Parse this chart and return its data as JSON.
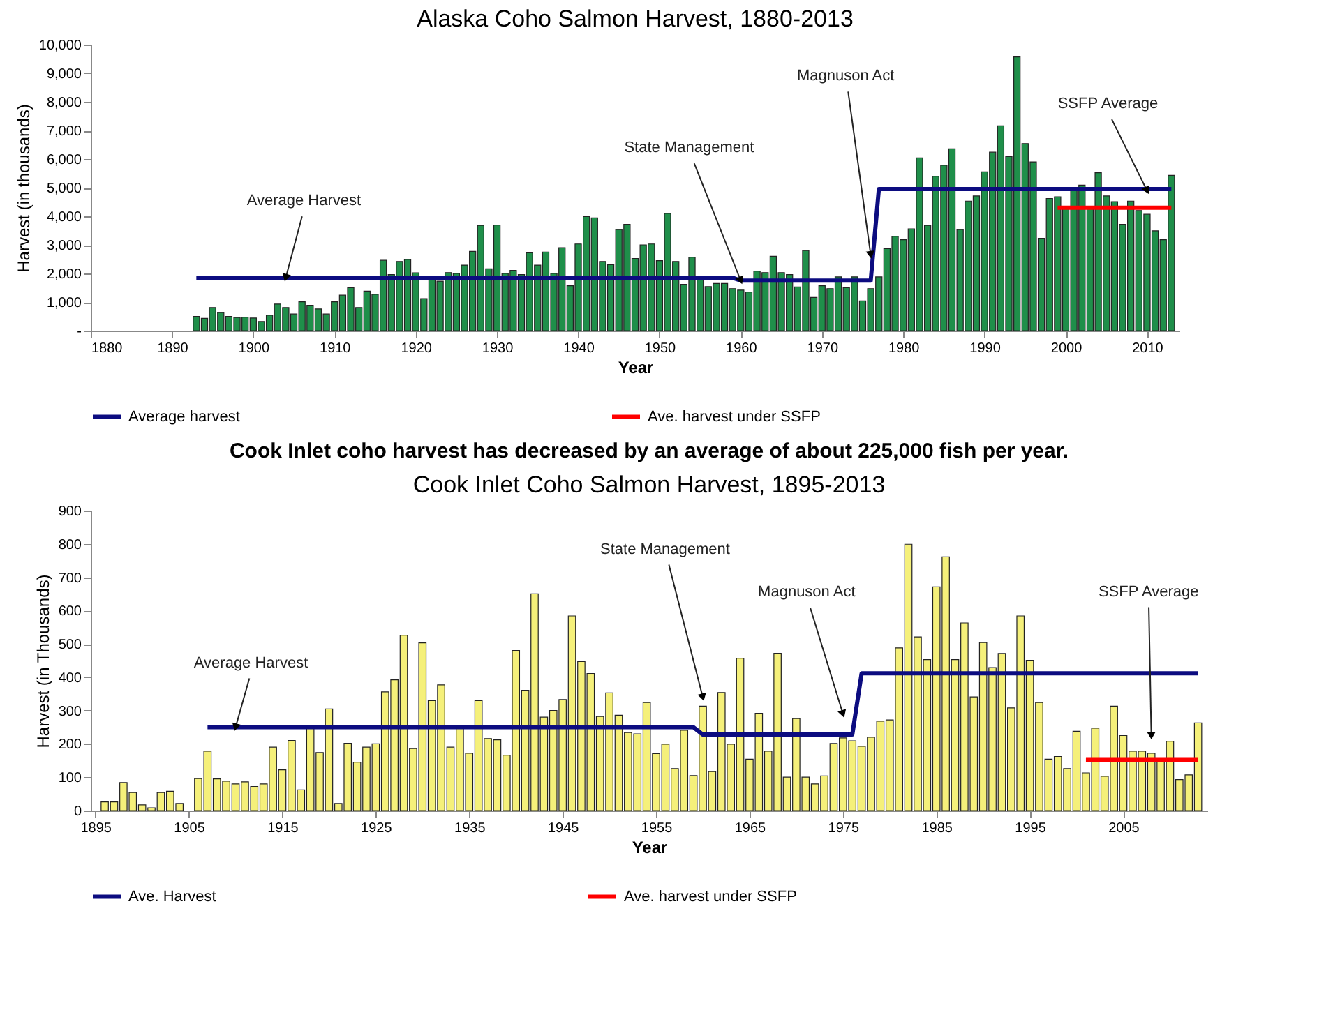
{
  "chart_data": [
    {
      "type": "bar",
      "title": "Alaska Coho Salmon Harvest, 1880-2013",
      "xlabel": "Year",
      "ylabel": "Harvest (in thousands)",
      "xlim": [
        1880,
        2014
      ],
      "xticks": [
        1880,
        1890,
        1900,
        1910,
        1920,
        1930,
        1940,
        1950,
        1960,
        1970,
        1980,
        1990,
        2000,
        2010
      ],
      "ylim": [
        0,
        10000
      ],
      "yticks": [
        {
          "value": 0,
          "label": "-"
        },
        {
          "value": 1000,
          "label": "1,000"
        },
        {
          "value": 2000,
          "label": "2,000"
        },
        {
          "value": 3000,
          "label": "3,000"
        },
        {
          "value": 4000,
          "label": "4,000"
        },
        {
          "value": 5000,
          "label": "5,000"
        },
        {
          "value": 6000,
          "label": "6,000"
        },
        {
          "value": 7000,
          "label": "7,000"
        },
        {
          "value": 8000,
          "label": "8,000"
        },
        {
          "value": 9000,
          "label": "9,000"
        },
        {
          "value": 10000,
          "label": "10,000"
        }
      ],
      "legend": "bottom",
      "series": [
        {
          "type": "bar",
          "color": "#1f8f4a",
          "x": [
            1893,
            1894,
            1895,
            1896,
            1897,
            1898,
            1899,
            1900,
            1901,
            1902,
            1903,
            1904,
            1905,
            1906,
            1907,
            1908,
            1909,
            1910,
            1911,
            1912,
            1913,
            1914,
            1915,
            1916,
            1917,
            1918,
            1919,
            1920,
            1921,
            1922,
            1923,
            1924,
            1925,
            1926,
            1927,
            1928,
            1929,
            1930,
            1931,
            1932,
            1933,
            1934,
            1935,
            1936,
            1937,
            1938,
            1939,
            1940,
            1941,
            1942,
            1943,
            1944,
            1945,
            1946,
            1947,
            1948,
            1949,
            1950,
            1951,
            1952,
            1953,
            1954,
            1955,
            1956,
            1957,
            1958,
            1959,
            1960,
            1961,
            1962,
            1963,
            1964,
            1965,
            1966,
            1967,
            1968,
            1969,
            1970,
            1971,
            1972,
            1973,
            1974,
            1975,
            1976,
            1977,
            1978,
            1979,
            1980,
            1981,
            1982,
            1983,
            1984,
            1985,
            1986,
            1987,
            1988,
            1989,
            1990,
            1991,
            1992,
            1993,
            1994,
            1995,
            1996,
            1997,
            1998,
            1999,
            2000,
            2001,
            2002,
            2003,
            2004,
            2005,
            2006,
            2007,
            2008,
            2009,
            2010,
            2011,
            2012,
            2013
          ],
          "values": [
            500,
            430,
            810,
            630,
            500,
            460,
            470,
            440,
            320,
            540,
            930,
            810,
            580,
            1010,
            890,
            760,
            580,
            1010,
            1240,
            1500,
            810,
            1380,
            1270,
            2460,
            1960,
            2420,
            2490,
            2020,
            1120,
            1800,
            1730,
            2030,
            2000,
            2290,
            2770,
            3680,
            2160,
            3690,
            2000,
            2110,
            1960,
            2720,
            2290,
            2750,
            2000,
            2900,
            1570,
            3030,
            3990,
            3940,
            2420,
            2310,
            3530,
            3720,
            2520,
            3000,
            3030,
            2450,
            4100,
            2420,
            1620,
            2570,
            1800,
            1540,
            1650,
            1650,
            1470,
            1420,
            1350,
            2080,
            2030,
            2600,
            2030,
            1960,
            1530,
            2800,
            1160,
            1570,
            1470,
            1880,
            1500,
            1880,
            1040,
            1470,
            1880,
            2870,
            3300,
            3180,
            3560,
            6040,
            3680,
            5400,
            5780,
            6360,
            3530,
            4530,
            4710,
            5550,
            6240,
            7160,
            6090,
            9570,
            6540,
            5900,
            3230,
            4620,
            4680,
            4280,
            4970,
            5090,
            4330,
            5520,
            4710,
            4510,
            3720,
            4530,
            4200,
            4070,
            3490,
            3180,
            5430
          ]
        },
        {
          "type": "line",
          "name": "Average harvest",
          "color": "#0c0c80",
          "x": [
            1893,
            1959,
            1960,
            1976,
            1977,
            2013
          ],
          "values": [
            1850,
            1850,
            1750,
            1750,
            4950,
            4950
          ]
        },
        {
          "type": "line",
          "name": "Ave. harvest under SSFP",
          "color": "#ff0000",
          "x": [
            1999,
            2013
          ],
          "values": [
            4300,
            4300
          ]
        }
      ],
      "annotations": [
        {
          "text": "Average Harvest",
          "x": 1904,
          "y": 1850
        },
        {
          "text": "State Management",
          "x": 1960,
          "y": 1750
        },
        {
          "text": "Magnuson Act",
          "x": 1976,
          "y": 2650
        },
        {
          "text": "SSFP Average",
          "x": 2010,
          "y": 4900
        }
      ]
    },
    {
      "type": "bar",
      "title": "Cook Inlet Coho Salmon Harvest, 1895-2013",
      "subtitle": "Cook Inlet coho harvest has decreased by an average of about 225,000 fish per year.",
      "xlabel": "Year",
      "ylabel": "Harvest (in Thousands)",
      "xlim": [
        1894.5,
        2014
      ],
      "xticks": [
        1895,
        1905,
        1915,
        1925,
        1935,
        1945,
        1955,
        1965,
        1975,
        1985,
        1995,
        2005
      ],
      "ylim": [
        0,
        900
      ],
      "yticks": [
        0,
        100,
        200,
        300,
        400,
        500,
        600,
        700,
        800,
        900
      ],
      "legend": "bottom",
      "series": [
        {
          "type": "bar",
          "color": "#f5f07a",
          "x": [
            1896,
            1897,
            1898,
            1899,
            1900,
            1901,
            1902,
            1903,
            1904,
            1905,
            1906,
            1907,
            1908,
            1909,
            1910,
            1911,
            1912,
            1913,
            1914,
            1915,
            1916,
            1917,
            1918,
            1919,
            1920,
            1921,
            1922,
            1923,
            1924,
            1925,
            1926,
            1927,
            1928,
            1929,
            1930,
            1931,
            1932,
            1933,
            1934,
            1935,
            1936,
            1937,
            1938,
            1939,
            1940,
            1941,
            1942,
            1943,
            1944,
            1945,
            1946,
            1947,
            1948,
            1949,
            1950,
            1951,
            1952,
            1953,
            1954,
            1955,
            1956,
            1957,
            1958,
            1959,
            1960,
            1961,
            1962,
            1963,
            1964,
            1965,
            1966,
            1967,
            1968,
            1969,
            1970,
            1971,
            1972,
            1973,
            1974,
            1975,
            1976,
            1977,
            1978,
            1979,
            1980,
            1981,
            1982,
            1983,
            1984,
            1985,
            1986,
            1987,
            1988,
            1989,
            1990,
            1991,
            1992,
            1993,
            1994,
            1995,
            1996,
            1997,
            1998,
            1999,
            2000,
            2001,
            2002,
            2003,
            2004,
            2005,
            2006,
            2007,
            2008,
            2009,
            2010,
            2011,
            2012,
            2013
          ],
          "values": [
            26,
            26,
            84,
            54,
            17,
            8,
            54,
            58,
            21,
            null,
            96,
            178,
            95,
            88,
            80,
            86,
            72,
            80,
            190,
            122,
            210,
            62,
            250,
            174,
            305,
            21,
            202,
            145,
            190,
            200,
            356,
            392,
            526,
            186,
            503,
            330,
            377,
            190,
            250,
            172,
            330,
            216,
            212,
            166,
            480,
            361,
            650,
            280,
            300,
            333,
            584,
            447,
            411,
            282,
            353,
            286,
            234,
            230,
            324,
            171,
            199,
            126,
            241,
            105,
            313,
            117,
            354,
            199,
            457,
            154,
            292,
            178,
            472,
            100,
            276,
            100,
            80,
            104,
            201,
            218,
            209,
            193,
            220,
            268,
            272,
            488,
            799,
            521,
            453,
            671,
            761,
            453,
            563,
            341,
            504,
            429,
            471,
            308,
            584,
            451,
            324,
            154,
            162,
            126,
            238,
            113,
            247,
            103,
            313,
            225,
            178,
            178,
            172,
            153,
            208,
            93,
            107,
            263
          ]
        },
        {
          "type": "line",
          "name": "Ave. Harvest",
          "color": "#0c0c80",
          "x": [
            1907,
            1959,
            1960,
            1976,
            1977,
            2013
          ],
          "values": [
            250,
            250,
            228,
            228,
            412,
            412
          ]
        },
        {
          "type": "line",
          "name": "Ave. harvest under SSFP",
          "color": "#ff0000",
          "x": [
            2001,
            2013
          ],
          "values": [
            152,
            152
          ]
        }
      ],
      "annotations": [
        {
          "text": "Average Harvest",
          "x": 1910,
          "y": 250
        },
        {
          "text": "State Management",
          "x": 1960,
          "y": 340
        },
        {
          "text": "Magnuson Act",
          "x": 1975,
          "y": 290
        },
        {
          "text": "SSFP Average",
          "x": 2008,
          "y": 225
        }
      ]
    }
  ]
}
